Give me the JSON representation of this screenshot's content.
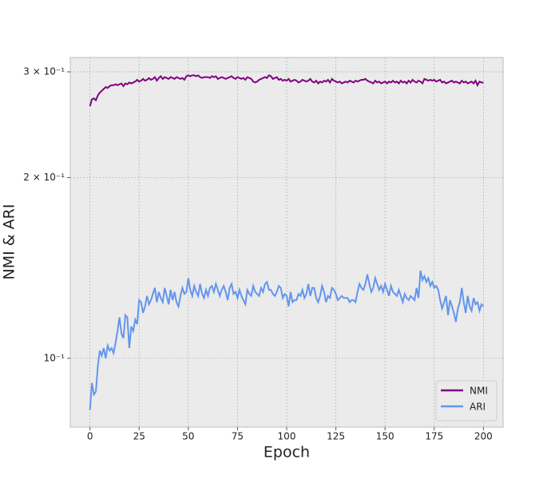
{
  "chart_data": {
    "type": "line",
    "xlabel": "Epoch",
    "ylabel": "NMI & ARI",
    "x": [
      0,
      1,
      2,
      3,
      4,
      5,
      6,
      7,
      8,
      9,
      10,
      11,
      12,
      13,
      14,
      15,
      16,
      17,
      18,
      19,
      20,
      21,
      22,
      23,
      24,
      25,
      26,
      27,
      28,
      29,
      30,
      31,
      32,
      33,
      34,
      35,
      36,
      37,
      38,
      39,
      40,
      41,
      42,
      43,
      44,
      45,
      46,
      47,
      48,
      49,
      50,
      51,
      52,
      53,
      54,
      55,
      56,
      57,
      58,
      59,
      60,
      61,
      62,
      63,
      64,
      65,
      66,
      67,
      68,
      69,
      70,
      71,
      72,
      73,
      74,
      75,
      76,
      77,
      78,
      79,
      80,
      81,
      82,
      83,
      84,
      85,
      86,
      87,
      88,
      89,
      90,
      91,
      92,
      93,
      94,
      95,
      96,
      97,
      98,
      99,
      100,
      101,
      102,
      103,
      104,
      105,
      106,
      107,
      108,
      109,
      110,
      111,
      112,
      113,
      114,
      115,
      116,
      117,
      118,
      119,
      120,
      121,
      122,
      123,
      124,
      125,
      126,
      127,
      128,
      129,
      130,
      131,
      132,
      133,
      134,
      135,
      136,
      137,
      138,
      139,
      140,
      141,
      142,
      143,
      144,
      145,
      146,
      147,
      148,
      149,
      150,
      151,
      152,
      153,
      154,
      155,
      156,
      157,
      158,
      159,
      160,
      161,
      162,
      163,
      164,
      165,
      166,
      167,
      168,
      169,
      170,
      171,
      172,
      173,
      174,
      175,
      176,
      177,
      178,
      179,
      180,
      181,
      182,
      183,
      184,
      185,
      186,
      187,
      188,
      189,
      190,
      191,
      192,
      193,
      194,
      195,
      196,
      197,
      198,
      199,
      200
    ],
    "series": [
      {
        "name": "NMI",
        "color": "#800080",
        "values": [
          0.263,
          0.27,
          0.271,
          0.269,
          0.274,
          0.277,
          0.279,
          0.281,
          0.283,
          0.282,
          0.284,
          0.285,
          0.285,
          0.286,
          0.285,
          0.286,
          0.287,
          0.284,
          0.287,
          0.286,
          0.288,
          0.287,
          0.288,
          0.289,
          0.291,
          0.289,
          0.29,
          0.292,
          0.29,
          0.291,
          0.293,
          0.291,
          0.292,
          0.294,
          0.29,
          0.293,
          0.295,
          0.292,
          0.294,
          0.293,
          0.292,
          0.294,
          0.293,
          0.292,
          0.294,
          0.293,
          0.292,
          0.293,
          0.291,
          0.295,
          0.296,
          0.295,
          0.296,
          0.296,
          0.295,
          0.296,
          0.294,
          0.293,
          0.294,
          0.294,
          0.294,
          0.293,
          0.295,
          0.294,
          0.295,
          0.292,
          0.293,
          0.294,
          0.293,
          0.292,
          0.293,
          0.294,
          0.295,
          0.293,
          0.292,
          0.294,
          0.293,
          0.292,
          0.293,
          0.291,
          0.294,
          0.293,
          0.292,
          0.289,
          0.288,
          0.289,
          0.291,
          0.292,
          0.293,
          0.294,
          0.293,
          0.296,
          0.295,
          0.292,
          0.293,
          0.294,
          0.291,
          0.292,
          0.29,
          0.291,
          0.29,
          0.292,
          0.289,
          0.29,
          0.291,
          0.29,
          0.288,
          0.289,
          0.291,
          0.29,
          0.289,
          0.29,
          0.292,
          0.289,
          0.288,
          0.29,
          0.287,
          0.289,
          0.288,
          0.29,
          0.289,
          0.291,
          0.288,
          0.292,
          0.29,
          0.289,
          0.288,
          0.289,
          0.287,
          0.288,
          0.289,
          0.288,
          0.29,
          0.289,
          0.288,
          0.29,
          0.289,
          0.29,
          0.291,
          0.291,
          0.292,
          0.29,
          0.289,
          0.288,
          0.287,
          0.29,
          0.288,
          0.289,
          0.287,
          0.288,
          0.289,
          0.287,
          0.289,
          0.288,
          0.29,
          0.288,
          0.289,
          0.287,
          0.29,
          0.288,
          0.289,
          0.287,
          0.29,
          0.288,
          0.291,
          0.289,
          0.288,
          0.29,
          0.289,
          0.287,
          0.292,
          0.291,
          0.29,
          0.291,
          0.29,
          0.291,
          0.289,
          0.29,
          0.291,
          0.288,
          0.289,
          0.287,
          0.288,
          0.289,
          0.29,
          0.288,
          0.289,
          0.288,
          0.287,
          0.29,
          0.288,
          0.289,
          0.287,
          0.288,
          0.289,
          0.287,
          0.29,
          0.285,
          0.289,
          0.288,
          0.288
        ]
      },
      {
        "name": "ARI",
        "color": "#6495ed",
        "values": [
          0.082,
          0.091,
          0.087,
          0.088,
          0.097,
          0.103,
          0.101,
          0.104,
          0.1,
          0.105,
          0.103,
          0.104,
          0.102,
          0.106,
          0.111,
          0.117,
          0.11,
          0.108,
          0.118,
          0.117,
          0.104,
          0.113,
          0.111,
          0.116,
          0.114,
          0.125,
          0.124,
          0.119,
          0.122,
          0.127,
          0.123,
          0.125,
          0.128,
          0.131,
          0.124,
          0.129,
          0.126,
          0.124,
          0.131,
          0.127,
          0.123,
          0.13,
          0.125,
          0.129,
          0.124,
          0.122,
          0.127,
          0.131,
          0.128,
          0.129,
          0.136,
          0.13,
          0.127,
          0.132,
          0.129,
          0.127,
          0.133,
          0.128,
          0.126,
          0.13,
          0.127,
          0.131,
          0.132,
          0.129,
          0.133,
          0.13,
          0.127,
          0.13,
          0.132,
          0.129,
          0.125,
          0.131,
          0.133,
          0.128,
          0.129,
          0.126,
          0.13,
          0.127,
          0.125,
          0.123,
          0.13,
          0.128,
          0.127,
          0.132,
          0.129,
          0.128,
          0.127,
          0.131,
          0.129,
          0.133,
          0.134,
          0.13,
          0.13,
          0.128,
          0.127,
          0.129,
          0.132,
          0.131,
          0.126,
          0.128,
          0.127,
          0.122,
          0.129,
          0.124,
          0.125,
          0.125,
          0.128,
          0.127,
          0.13,
          0.126,
          0.128,
          0.133,
          0.127,
          0.131,
          0.131,
          0.126,
          0.124,
          0.127,
          0.132,
          0.129,
          0.124,
          0.127,
          0.126,
          0.131,
          0.13,
          0.128,
          0.125,
          0.126,
          0.127,
          0.126,
          0.126,
          0.126,
          0.124,
          0.125,
          0.125,
          0.124,
          0.129,
          0.133,
          0.131,
          0.13,
          0.133,
          0.138,
          0.133,
          0.129,
          0.131,
          0.136,
          0.133,
          0.13,
          0.132,
          0.129,
          0.133,
          0.13,
          0.127,
          0.132,
          0.129,
          0.128,
          0.127,
          0.13,
          0.127,
          0.124,
          0.128,
          0.126,
          0.125,
          0.127,
          0.126,
          0.125,
          0.131,
          0.126,
          0.14,
          0.135,
          0.137,
          0.134,
          0.136,
          0.132,
          0.134,
          0.131,
          0.132,
          0.13,
          0.125,
          0.121,
          0.124,
          0.127,
          0.118,
          0.125,
          0.122,
          0.119,
          0.115,
          0.121,
          0.124,
          0.131,
          0.124,
          0.119,
          0.127,
          0.122,
          0.12,
          0.126,
          0.123,
          0.124,
          0.12,
          0.123,
          0.122
        ]
      }
    ],
    "xlim": [
      -10,
      210
    ],
    "xticks": [
      0,
      25,
      50,
      75,
      100,
      125,
      150,
      175,
      200
    ],
    "ylim": [
      0.0768,
      0.317
    ],
    "ylog": true,
    "yticks": [
      {
        "value": 0.1,
        "label": "10⁻¹"
      },
      {
        "value": 0.2,
        "label": "2 × 10⁻¹"
      },
      {
        "value": 0.3,
        "label": "3 × 10⁻¹"
      }
    ],
    "grid": true,
    "legend": "lower right"
  }
}
